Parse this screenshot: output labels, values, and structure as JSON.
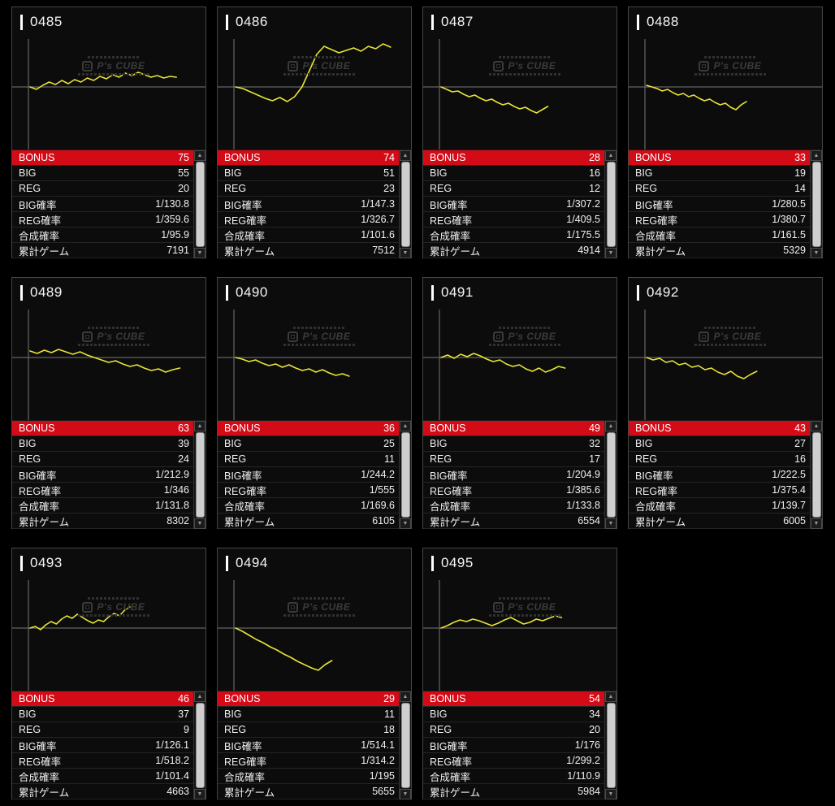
{
  "colors": {
    "bonus_row_bg": "#d30b17",
    "chart_line": "#e8e435",
    "axis": "#777777",
    "card_border": "#464646"
  },
  "labels": {
    "bonus": "BONUS",
    "big": "BIG",
    "reg": "REG",
    "big_rate": "BIG確率",
    "reg_rate": "REG確率",
    "combined_rate": "合成確率",
    "total_games": "累計ゲーム"
  },
  "icons": {
    "up_arrow": "▲",
    "down_arrow": "▼"
  },
  "watermark": {
    "logo_text": "P's CUBE"
  },
  "chart_data": {
    "type": "line",
    "title": "Slump graphs per machine (differential vs games), yellow line over gray zero axis",
    "note": "values are pixel offsets above(+)/below(-) the zero line; span = fraction of plot width covered"
  },
  "machines": [
    {
      "id": "0485",
      "bonus": "75",
      "big": "55",
      "reg": "20",
      "big_rate": "1/130.8",
      "reg_rate": "1/359.6",
      "combined_rate": "1/95.9",
      "total_games": "7191",
      "chart": {
        "span": 0.85,
        "values": [
          0,
          -3,
          2,
          6,
          3,
          8,
          4,
          9,
          6,
          11,
          8,
          13,
          10,
          15,
          12,
          17,
          14,
          18,
          15,
          12,
          14,
          11,
          13,
          12
        ]
      }
    },
    {
      "id": "0486",
      "bonus": "74",
      "big": "51",
      "reg": "23",
      "big_rate": "1/147.3",
      "reg_rate": "1/326.7",
      "combined_rate": "1/101.6",
      "total_games": "7512",
      "chart": {
        "span": 0.9,
        "values": [
          0,
          -2,
          -6,
          -10,
          -14,
          -17,
          -13,
          -18,
          -12,
          0,
          20,
          40,
          50,
          46,
          42,
          45,
          48,
          44,
          50,
          47,
          53,
          49
        ]
      }
    },
    {
      "id": "0487",
      "bonus": "28",
      "big": "16",
      "reg": "12",
      "big_rate": "1/307.2",
      "reg_rate": "1/409.5",
      "combined_rate": "1/175.5",
      "total_games": "4914",
      "chart": {
        "span": 0.62,
        "values": [
          0,
          -3,
          -6,
          -5,
          -9,
          -12,
          -10,
          -14,
          -17,
          -15,
          -19,
          -22,
          -20,
          -24,
          -27,
          -25,
          -29,
          -32,
          -28,
          -24
        ]
      }
    },
    {
      "id": "0488",
      "bonus": "33",
      "big": "19",
      "reg": "14",
      "big_rate": "1/280.5",
      "reg_rate": "1/380.7",
      "combined_rate": "1/161.5",
      "total_games": "5329",
      "chart": {
        "span": 0.58,
        "values": [
          2,
          0,
          -2,
          -5,
          -3,
          -7,
          -10,
          -8,
          -12,
          -10,
          -14,
          -17,
          -15,
          -19,
          -22,
          -20,
          -25,
          -28,
          -22,
          -18
        ]
      }
    },
    {
      "id": "0489",
      "bonus": "63",
      "big": "39",
      "reg": "24",
      "big_rate": "1/212.9",
      "reg_rate": "1/346",
      "combined_rate": "1/131.8",
      "total_games": "8302",
      "chart": {
        "span": 0.87,
        "values": [
          8,
          5,
          9,
          6,
          10,
          7,
          4,
          7,
          3,
          0,
          -3,
          -6,
          -4,
          -8,
          -11,
          -9,
          -13,
          -16,
          -14,
          -18,
          -15,
          -13
        ]
      }
    },
    {
      "id": "0490",
      "bonus": "36",
      "big": "25",
      "reg": "11",
      "big_rate": "1/244.2",
      "reg_rate": "1/555",
      "combined_rate": "1/169.6",
      "total_games": "6105",
      "chart": {
        "span": 0.66,
        "values": [
          0,
          -2,
          -5,
          -3,
          -7,
          -10,
          -8,
          -12,
          -9,
          -13,
          -16,
          -14,
          -18,
          -15,
          -19,
          -22,
          -20,
          -23
        ]
      }
    },
    {
      "id": "0491",
      "bonus": "49",
      "big": "32",
      "reg": "17",
      "big_rate": "1/204.9",
      "reg_rate": "1/385.6",
      "combined_rate": "1/133.8",
      "total_games": "6554",
      "chart": {
        "span": 0.72,
        "values": [
          0,
          3,
          -1,
          4,
          1,
          5,
          2,
          -2,
          -5,
          -3,
          -8,
          -11,
          -9,
          -14,
          -17,
          -13,
          -18,
          -15,
          -11,
          -13
        ]
      }
    },
    {
      "id": "0492",
      "bonus": "43",
      "big": "27",
      "reg": "16",
      "big_rate": "1/222.5",
      "reg_rate": "1/375.4",
      "combined_rate": "1/139.7",
      "total_games": "6005",
      "chart": {
        "span": 0.64,
        "values": [
          0,
          -3,
          -1,
          -6,
          -4,
          -9,
          -7,
          -12,
          -10,
          -15,
          -13,
          -18,
          -21,
          -17,
          -23,
          -26,
          -21,
          -17
        ]
      }
    },
    {
      "id": "0493",
      "bonus": "46",
      "big": "37",
      "reg": "9",
      "big_rate": "1/126.1",
      "reg_rate": "1/518.2",
      "combined_rate": "1/101.4",
      "total_games": "4663",
      "chart": {
        "span": 0.58,
        "values": [
          0,
          2,
          -2,
          4,
          8,
          5,
          11,
          15,
          12,
          17,
          13,
          9,
          6,
          10,
          8,
          14,
          18,
          15,
          22,
          26
        ]
      }
    },
    {
      "id": "0494",
      "bonus": "29",
      "big": "11",
      "reg": "18",
      "big_rate": "1/514.1",
      "reg_rate": "1/314.2",
      "combined_rate": "1/195",
      "total_games": "5655",
      "chart": {
        "span": 0.56,
        "values": [
          0,
          -4,
          -9,
          -14,
          -18,
          -23,
          -27,
          -32,
          -36,
          -41,
          -45,
          -49,
          -52,
          -45,
          -40
        ]
      }
    },
    {
      "id": "0495",
      "bonus": "54",
      "big": "34",
      "reg": "20",
      "big_rate": "1/176",
      "reg_rate": "1/299.2",
      "combined_rate": "1/110.9",
      "total_games": "5984",
      "chart": {
        "span": 0.7,
        "values": [
          0,
          3,
          7,
          10,
          8,
          11,
          9,
          6,
          3,
          6,
          10,
          13,
          9,
          5,
          7,
          11,
          9,
          12,
          15,
          13
        ]
      }
    }
  ]
}
